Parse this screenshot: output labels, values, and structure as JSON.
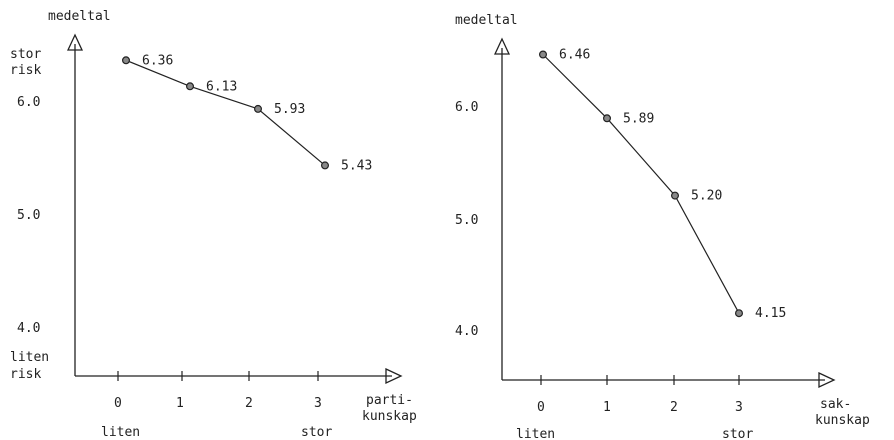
{
  "chart_data": [
    {
      "type": "line",
      "y_axis_title": "medeltal",
      "y_top_label": [
        "stor",
        "risk"
      ],
      "y_bottom_label": [
        "liten",
        "risk"
      ],
      "x_axis_title": [
        "parti-",
        "kunskap"
      ],
      "x_low_label": "liten",
      "x_high_label": "stor",
      "categories": [
        "0",
        "1",
        "2",
        "3"
      ],
      "y_ticks": [
        "6.0",
        "5.0",
        "4.0"
      ],
      "x": [
        0,
        1,
        2,
        3
      ],
      "values": [
        6.36,
        6.13,
        5.93,
        5.43
      ],
      "value_labels": [
        "6.36",
        "6.13",
        "5.93",
        "5.43"
      ],
      "ylim": [
        3.55,
        6.55
      ],
      "grid": false
    },
    {
      "type": "line",
      "y_axis_title": "medeltal",
      "x_axis_title": [
        "sak-",
        "kunskap"
      ],
      "x_low_label": "liten",
      "x_high_label": "stor",
      "categories": [
        "0",
        "1",
        "2",
        "3"
      ],
      "y_ticks": [
        "6.0",
        "5.0",
        "4.0"
      ],
      "x": [
        0,
        1,
        2,
        3
      ],
      "values": [
        6.46,
        5.89,
        5.2,
        4.15
      ],
      "value_labels": [
        "6.46",
        "5.89",
        "5.20",
        "4.15"
      ],
      "ylim": [
        3.55,
        6.55
      ],
      "grid": false
    }
  ]
}
